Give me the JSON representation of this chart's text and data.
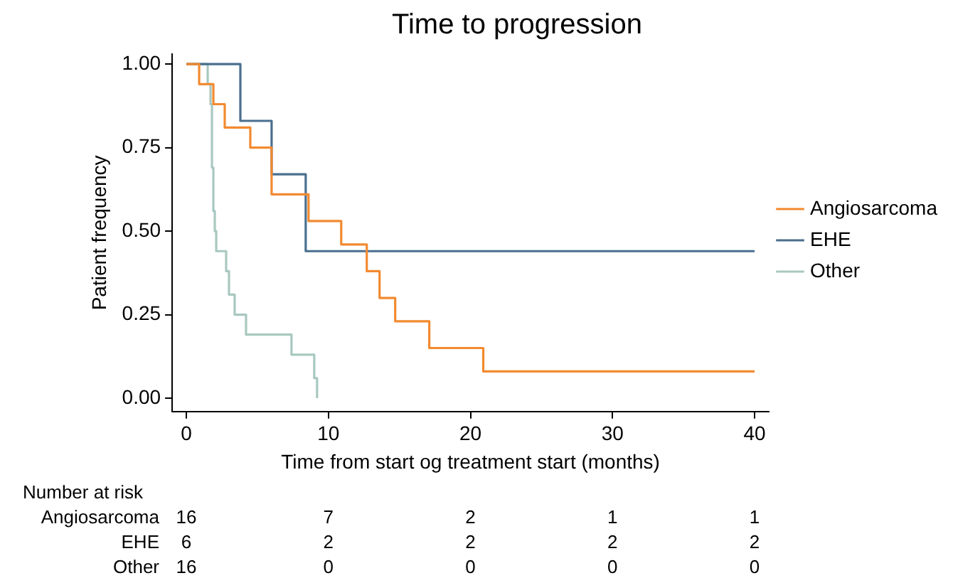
{
  "chart_data": {
    "type": "step",
    "title": "Time to progression",
    "xlabel": "Time from start og treatment start (months)",
    "ylabel": "Patient frequency",
    "series": [
      {
        "name": "Angiosarcoma",
        "color": "#f28a30",
        "x": [
          0,
          0.9,
          1.9,
          2.7,
          4.5,
          6.0,
          8.6,
          10.9,
          12.7,
          13.6,
          14.7,
          17.1,
          20.9,
          40
        ],
        "values": [
          1,
          0.94,
          0.88,
          0.81,
          0.75,
          0.61,
          0.53,
          0.46,
          0.38,
          0.3,
          0.23,
          0.15,
          0.08,
          0.08
        ]
      },
      {
        "name": "EHE",
        "color": "#4a6f8f",
        "x": [
          0,
          3.8,
          6.0,
          8.4,
          40
        ],
        "values": [
          1,
          0.83,
          0.67,
          0.44,
          0.44
        ]
      },
      {
        "name": "Other",
        "color": "#a8c8c0",
        "x": [
          0,
          1.5,
          1.7,
          1.8,
          1.9,
          2.0,
          2.1,
          2.8,
          3.0,
          3.4,
          4.2,
          7.4,
          9.0,
          9.2
        ],
        "values": [
          1,
          0.94,
          0.88,
          0.69,
          0.56,
          0.5,
          0.44,
          0.38,
          0.31,
          0.25,
          0.19,
          0.13,
          0.06,
          0
        ]
      }
    ],
    "xlim": [
      -1,
      41
    ],
    "xticks": [
      0,
      10,
      20,
      30,
      40
    ],
    "ylim": [
      -0.04,
      1.03
    ],
    "yticks": [
      {
        "value": 0,
        "label": "0.00"
      },
      {
        "value": 0.25,
        "label": "0.25"
      },
      {
        "value": 0.5,
        "label": "0.50"
      },
      {
        "value": 0.75,
        "label": "0.75"
      },
      {
        "value": 1,
        "label": "1.00"
      }
    ],
    "grid": false,
    "legend": "right",
    "marker": "none",
    "line_style": "solid",
    "annotations": [
      "Number at risk",
      "Angiosarcoma",
      "16",
      "7",
      "2",
      "1",
      "1",
      "EHE",
      "6",
      "2",
      "2",
      "2",
      "2",
      "Other",
      "16",
      "0",
      "0",
      "0",
      "0"
    ]
  }
}
